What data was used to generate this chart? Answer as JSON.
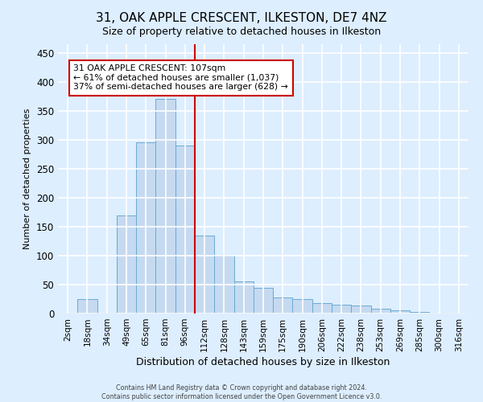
{
  "title": "31, OAK APPLE CRESCENT, ILKESTON, DE7 4NZ",
  "subtitle": "Size of property relative to detached houses in Ilkeston",
  "xlabel": "Distribution of detached houses by size in Ilkeston",
  "ylabel": "Number of detached properties",
  "footer_line1": "Contains HM Land Registry data © Crown copyright and database right 2024.",
  "footer_line2": "Contains public sector information licensed under the Open Government Licence v3.0.",
  "bar_labels": [
    "2sqm",
    "18sqm",
    "34sqm",
    "49sqm",
    "65sqm",
    "81sqm",
    "96sqm",
    "112sqm",
    "128sqm",
    "143sqm",
    "159sqm",
    "175sqm",
    "190sqm",
    "206sqm",
    "222sqm",
    "238sqm",
    "253sqm",
    "269sqm",
    "285sqm",
    "300sqm",
    "316sqm"
  ],
  "bar_values": [
    2,
    25,
    2,
    170,
    295,
    370,
    290,
    135,
    100,
    55,
    45,
    28,
    25,
    18,
    15,
    14,
    8,
    5,
    3,
    2,
    2
  ],
  "bar_color": "#c5daf0",
  "bar_edge_color": "#6aaad4",
  "vline_color": "#cc0000",
  "annotation_text": "31 OAK APPLE CRESCENT: 107sqm\n← 61% of detached houses are smaller (1,037)\n37% of semi-detached houses are larger (628) →",
  "annotation_box_color": "white",
  "annotation_box_edge_color": "#cc0000",
  "ylim": [
    0,
    465
  ],
  "yticks": [
    0,
    50,
    100,
    150,
    200,
    250,
    300,
    350,
    400,
    450
  ],
  "bg_color": "#ddeeff",
  "plot_bg_color": "#ddeeff",
  "grid_color": "white",
  "title_fontsize": 11,
  "subtitle_fontsize": 9
}
